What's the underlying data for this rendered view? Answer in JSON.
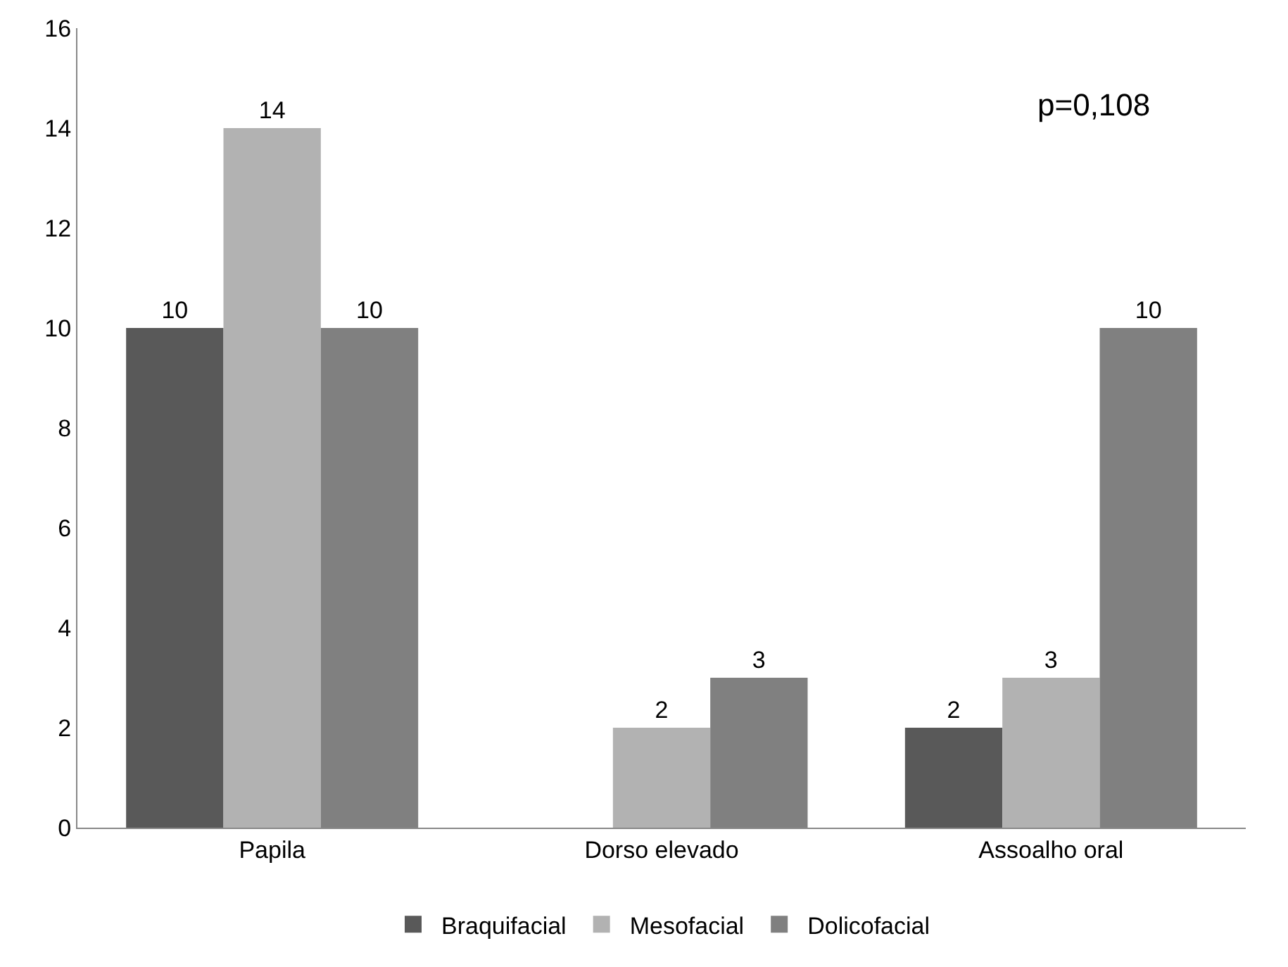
{
  "chart_data": {
    "type": "bar",
    "categories": [
      "Papila",
      "Dorso elevado",
      "Assoalho oral"
    ],
    "series": [
      {
        "name": "Braquifacial",
        "color": "#595959",
        "values": [
          10,
          null,
          2
        ]
      },
      {
        "name": "Mesofacial",
        "color": "#b2b2b2",
        "values": [
          14,
          2,
          3
        ]
      },
      {
        "name": "Dolicofacial",
        "color": "#808080",
        "values": [
          10,
          3,
          10
        ]
      }
    ],
    "ylim": [
      0,
      16
    ],
    "yticks": [
      0,
      2,
      4,
      6,
      8,
      10,
      12,
      14,
      16
    ],
    "legend": "bottom",
    "data_labels": true,
    "annotations": [
      "p=0,108"
    ]
  }
}
